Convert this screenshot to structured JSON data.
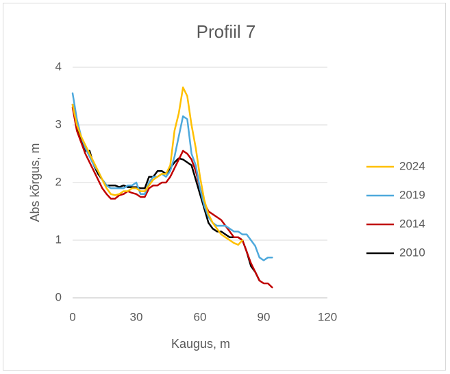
{
  "chart_data": {
    "type": "line",
    "title": "Profiil 7",
    "x_label": "Kaugus, m",
    "y_label": "Abs kõrgus, m",
    "x": [
      0,
      2,
      4,
      6,
      8,
      10,
      12,
      14,
      16,
      18,
      20,
      22,
      24,
      26,
      28,
      30,
      32,
      34,
      36,
      38,
      40,
      42,
      44,
      46,
      48,
      50,
      52,
      54,
      56,
      58,
      60,
      62,
      64,
      66,
      68,
      70,
      72,
      74,
      76,
      78,
      80,
      82,
      84,
      86,
      88,
      90,
      92,
      94
    ],
    "series": [
      {
        "name": "2024",
        "color": "#FFC000",
        "values": [
          3.35,
          3.0,
          2.8,
          2.65,
          2.5,
          2.35,
          2.2,
          2.05,
          1.9,
          1.8,
          1.78,
          1.8,
          1.85,
          1.85,
          1.9,
          1.9,
          1.85,
          1.85,
          1.95,
          2.05,
          2.1,
          2.15,
          2.15,
          2.3,
          2.9,
          3.2,
          3.65,
          3.5,
          3.0,
          2.6,
          2.1,
          1.7,
          1.45,
          1.3,
          1.2,
          1.1,
          1.05,
          1.0,
          0.95,
          0.92,
          1.0,
          null,
          null,
          null,
          null,
          null,
          null,
          null
        ]
      },
      {
        "name": "2019",
        "color": "#4EA9DC",
        "values": [
          3.55,
          3.1,
          2.8,
          2.6,
          2.45,
          2.3,
          2.2,
          2.05,
          1.95,
          1.9,
          1.9,
          1.9,
          1.9,
          1.95,
          1.95,
          2.0,
          1.8,
          1.8,
          2.0,
          2.1,
          2.1,
          2.15,
          2.1,
          2.2,
          2.45,
          2.8,
          3.15,
          3.1,
          2.5,
          2.3,
          1.9,
          1.6,
          1.4,
          1.3,
          1.25,
          1.25,
          1.25,
          1.2,
          1.15,
          1.15,
          1.1,
          1.1,
          1.0,
          0.9,
          0.7,
          0.65,
          0.7,
          0.7
        ]
      },
      {
        "name": "2014",
        "color": "#C00000",
        "values": [
          3.3,
          2.9,
          2.7,
          2.5,
          2.35,
          2.2,
          2.05,
          1.9,
          1.8,
          1.72,
          1.72,
          1.78,
          1.8,
          1.85,
          1.82,
          1.8,
          1.75,
          1.75,
          1.9,
          1.95,
          1.95,
          2.0,
          2.0,
          2.1,
          2.25,
          2.4,
          2.55,
          2.5,
          2.4,
          2.2,
          1.9,
          1.65,
          1.5,
          1.45,
          1.4,
          1.35,
          1.25,
          1.15,
          1.05,
          1.05,
          1.0,
          0.8,
          0.6,
          0.45,
          0.3,
          0.25,
          0.25,
          0.18
        ]
      },
      {
        "name": "2010",
        "color": "#000000",
        "values": [
          3.35,
          3.0,
          2.75,
          2.55,
          2.55,
          2.3,
          2.15,
          2.05,
          1.95,
          1.95,
          1.95,
          1.92,
          1.95,
          1.92,
          1.92,
          1.92,
          1.9,
          1.9,
          2.1,
          2.1,
          2.2,
          2.2,
          2.15,
          2.25,
          2.35,
          2.42,
          2.4,
          2.35,
          2.3,
          2.05,
          1.8,
          1.55,
          1.3,
          1.2,
          1.15,
          1.15,
          1.1,
          1.05,
          1.05,
          1.05,
          1.0,
          0.8,
          0.55,
          0.45,
          0.3,
          null,
          null,
          null
        ]
      }
    ],
    "xlim": [
      0,
      120
    ],
    "xticks": [
      0,
      30,
      60,
      90,
      120
    ],
    "ylim": [
      0,
      4
    ],
    "yticks": [
      0,
      1,
      2,
      3,
      4
    ],
    "grid": true,
    "legend": "right"
  }
}
